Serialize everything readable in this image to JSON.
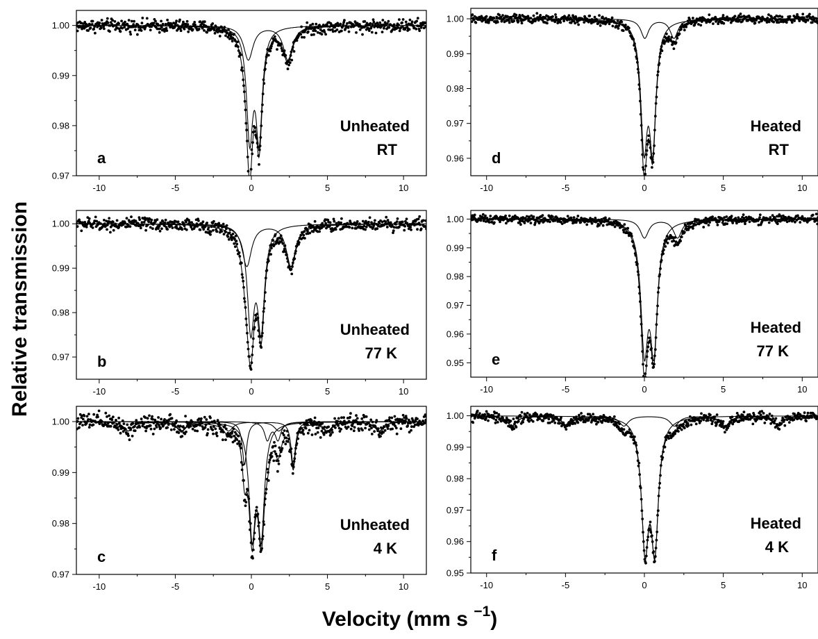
{
  "figure": {
    "ylabel": "Relative transmission",
    "xlabel_main": "Velocity (mm s ",
    "xlabel_sup": "−1",
    "xlabel_close": ")"
  },
  "chart_data": [
    {
      "id": "a",
      "type": "scatter",
      "letter": "a",
      "label": [
        "Unheated",
        "RT"
      ],
      "xlim": [
        -11.5,
        11.5
      ],
      "ylim": [
        0.97,
        1.003
      ],
      "xticks": [
        -10,
        -5,
        0,
        5,
        10
      ],
      "xtick_labels": [
        "-10",
        "-5",
        "0",
        "5",
        "10"
      ],
      "yticks": [
        0.97,
        0.98,
        0.99,
        1.0
      ],
      "ytick_labels": [
        "0.97",
        "0.98",
        "0.99",
        "1.00"
      ],
      "doublets": [
        {
          "center": 0.2,
          "split": 0.62,
          "depth": 0.0215,
          "width": 0.5
        },
        {
          "center": 1.1,
          "split": 2.6,
          "depth": 0.0068,
          "width": 0.75
        }
      ],
      "noise": 0.0008
    },
    {
      "id": "d",
      "type": "scatter",
      "letter": "d",
      "label": [
        "Heated",
        "RT"
      ],
      "xlim": [
        -11,
        11
      ],
      "ylim": [
        0.955,
        1.003
      ],
      "xticks": [
        -10,
        -5,
        0,
        5,
        10
      ],
      "xtick_labels": [
        "-10",
        "-5",
        "0",
        "5",
        "10"
      ],
      "yticks": [
        0.96,
        0.97,
        0.98,
        0.99,
        1.0
      ],
      "ytick_labels": [
        "0.96",
        "0.97",
        "0.98",
        "0.99",
        "1.00"
      ],
      "doublets": [
        {
          "center": 0.25,
          "split": 0.55,
          "depth": 0.034,
          "width": 0.5
        },
        {
          "center": 0.95,
          "split": 1.85,
          "depth": 0.0055,
          "width": 0.6
        }
      ],
      "noise": 0.0008
    },
    {
      "id": "b",
      "type": "scatter",
      "letter": "b",
      "label": [
        "Unheated",
        "77 K"
      ],
      "xlim": [
        -11.5,
        11.5
      ],
      "ylim": [
        0.965,
        1.003
      ],
      "xticks": [
        -10,
        -5,
        0,
        5,
        10
      ],
      "xtick_labels": [
        "-10",
        "-5",
        "0",
        "5",
        "10"
      ],
      "yticks": [
        0.97,
        0.98,
        0.99,
        1.0
      ],
      "ytick_labels": [
        "0.97",
        "0.98",
        "0.99",
        "1.00"
      ],
      "doublets": [
        {
          "center": 0.3,
          "split": 0.68,
          "depth": 0.0225,
          "width": 0.55
        },
        {
          "center": 1.15,
          "split": 2.9,
          "depth": 0.0095,
          "width": 0.75
        }
      ],
      "noise": 0.0009
    },
    {
      "id": "e",
      "type": "scatter",
      "letter": "e",
      "label": [
        "Heated",
        "77 K"
      ],
      "xlim": [
        -11,
        11
      ],
      "ylim": [
        0.945,
        1.003
      ],
      "xticks": [
        -10,
        -5,
        0,
        5,
        10
      ],
      "xtick_labels": [
        "-10",
        "-5",
        "0",
        "5",
        "10"
      ],
      "yticks": [
        0.95,
        0.96,
        0.97,
        0.98,
        0.99,
        1.0
      ],
      "ytick_labels": [
        "0.95",
        "0.96",
        "0.97",
        "0.98",
        "0.99",
        "1.00"
      ],
      "doublets": [
        {
          "center": 0.3,
          "split": 0.6,
          "depth": 0.042,
          "width": 0.55
        },
        {
          "center": 1.05,
          "split": 2.1,
          "depth": 0.0065,
          "width": 0.65
        }
      ],
      "noise": 0.0009
    },
    {
      "id": "c",
      "type": "scatter",
      "letter": "c",
      "label": [
        "Unheated",
        "4 K"
      ],
      "xlim": [
        -11.5,
        11.5
      ],
      "ylim": [
        0.97,
        1.003
      ],
      "xticks": [
        -10,
        -5,
        0,
        5,
        10
      ],
      "xtick_labels": [
        "-10",
        "-5",
        "0",
        "5",
        "10"
      ],
      "yticks": [
        0.97,
        0.98,
        0.99,
        1.0
      ],
      "ytick_labels": [
        "0.97",
        "0.98",
        "0.99",
        "1.00"
      ],
      "doublets": [
        {
          "center": 0.35,
          "split": 0.6,
          "depth": 0.021,
          "width": 0.5
        },
        {
          "center": 1.15,
          "split": 3.2,
          "depth": 0.0085,
          "width": 0.35
        },
        {
          "center": 1.4,
          "split": 0.7,
          "depth": 0.0035,
          "width": 0.45
        }
      ],
      "sextet": {
        "positions": [
          -8.1,
          -4.6,
          -1.5,
          1.8,
          5.0,
          8.4
        ],
        "depth": 0.0018,
        "width": 0.7
      },
      "noise": 0.0011
    },
    {
      "id": "f",
      "type": "scatter",
      "letter": "f",
      "label": [
        "Heated",
        "4 K"
      ],
      "xlim": [
        -11,
        11
      ],
      "ylim": [
        0.95,
        1.003
      ],
      "xticks": [
        -10,
        -5,
        0,
        5,
        10
      ],
      "xtick_labels": [
        "-10",
        "-5",
        "0",
        "5",
        "10"
      ],
      "yticks": [
        0.95,
        0.96,
        0.97,
        0.98,
        0.99,
        1.0
      ],
      "ytick_labels": [
        "0.95",
        "0.96",
        "0.97",
        "0.98",
        "0.99",
        "1.00"
      ],
      "doublets": [
        {
          "center": 0.35,
          "split": 0.62,
          "depth": 0.039,
          "width": 0.55
        }
      ],
      "sextet": {
        "positions": [
          -8.4,
          -4.9,
          -1.3,
          1.9,
          5.1,
          8.5
        ],
        "depth": 0.0032,
        "width": 0.7
      },
      "noise": 0.001
    }
  ]
}
